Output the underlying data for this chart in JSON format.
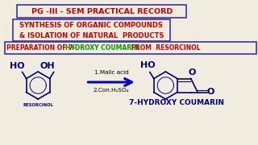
{
  "bg_color": "#f0ede0",
  "title1": "PG -III - SEM PRACTICAL RECORD",
  "title1_color": "#cc0000",
  "title1_box_color": "#3333aa",
  "title2_line1": "SYNTHESIS OF ORGANIC COMPOUNDS",
  "title2_line2": "& ISOLATION OF NATURAL  PRODUCTS",
  "title2_color": "#cc0000",
  "title2_box_color": "#3333aa",
  "title3_part1": "PREPARATION OF 7- ",
  "title3_part2": "HYDROXY COUMARIN",
  "title3_part3": " FROM  RESORCINOL",
  "title3_color1": "#cc0000",
  "title3_color2": "#009900",
  "title3_box_color": "#3333aa",
  "resorcinol_label": "RESORCINOL",
  "reagent1": "1.Malic acid",
  "reagent2": "2.Con.H₂SO₄",
  "product_label": "7-HYDROXY COUMARIN",
  "arrow_color": "#0000cc",
  "structure_color": "#000080",
  "label_color": "#000080"
}
